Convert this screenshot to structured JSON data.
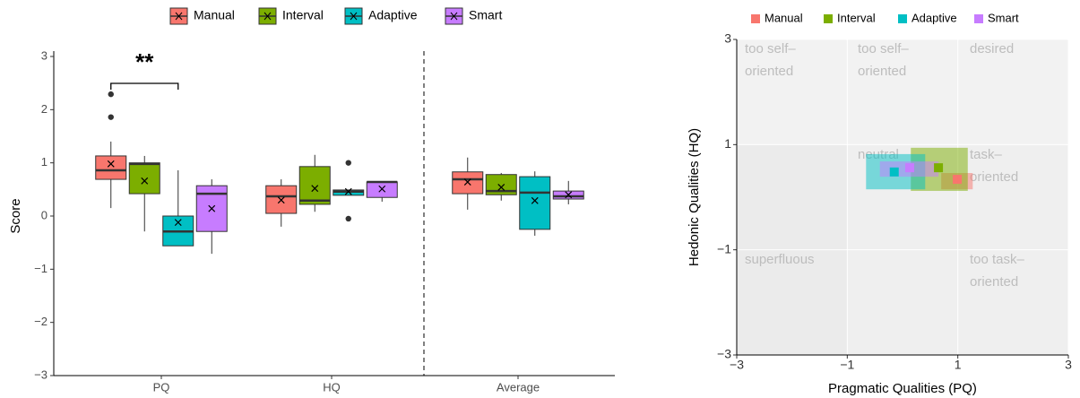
{
  "chart_data": [
    {
      "type": "box",
      "y_label": "Score",
      "categories": [
        "PQ",
        "HQ",
        "Average"
      ],
      "ylim": [
        -3,
        3
      ],
      "yticks": [
        {
          "value": -3,
          "label": "−3"
        },
        {
          "value": -2,
          "label": "−2"
        },
        {
          "value": -1,
          "label": "−1"
        },
        0,
        1,
        2,
        3
      ],
      "annotation": "**",
      "series": [
        {
          "name": "Manual",
          "color": "#F8766D",
          "boxes": [
            {
              "whisker_low": 0.15,
              "q1": 0.69,
              "median": 0.86,
              "q3": 1.13,
              "whisker_high": 1.4,
              "mean": 0.98,
              "outliers": [
                2.29,
                1.86
              ]
            },
            {
              "whisker_low": -0.2,
              "q1": 0.05,
              "median": 0.37,
              "q3": 0.57,
              "whisker_high": 0.69,
              "mean": 0.3,
              "outliers": []
            },
            {
              "whisker_low": 0.12,
              "q1": 0.42,
              "median": 0.69,
              "q3": 0.83,
              "whisker_high": 1.1,
              "mean": 0.64,
              "outliers": []
            }
          ]
        },
        {
          "name": "Interval",
          "color": "#7CAE00",
          "boxes": [
            {
              "whisker_low": -0.29,
              "q1": 0.42,
              "median": 0.98,
              "q3": 1.0,
              "whisker_high": 1.13,
              "mean": 0.66,
              "outliers": []
            },
            {
              "whisker_low": 0.08,
              "q1": 0.22,
              "median": 0.29,
              "q3": 0.93,
              "whisker_high": 1.15,
              "mean": 0.52,
              "outliers": []
            },
            {
              "whisker_low": 0.29,
              "q1": 0.4,
              "median": 0.47,
              "q3": 0.78,
              "whisker_high": 0.81,
              "mean": 0.54,
              "outliers": []
            }
          ]
        },
        {
          "name": "Adaptive",
          "color": "#00BFC4",
          "boxes": [
            {
              "whisker_low": -0.56,
              "q1": -0.56,
              "median": -0.29,
              "q3": 0.0,
              "whisker_high": 0.86,
              "mean": -0.12,
              "outliers": []
            },
            {
              "whisker_low": 0.39,
              "q1": 0.39,
              "median": 0.46,
              "q3": 0.49,
              "whisker_high": 0.49,
              "mean": 0.46,
              "outliers": [
                1.0,
                -0.05
              ]
            },
            {
              "whisker_low": -0.37,
              "q1": -0.25,
              "median": 0.44,
              "q3": 0.74,
              "whisker_high": 0.84,
              "mean": 0.29,
              "outliers": []
            }
          ]
        },
        {
          "name": "Smart",
          "color": "#C77CFF",
          "boxes": [
            {
              "whisker_low": -0.71,
              "q1": -0.29,
              "median": 0.42,
              "q3": 0.57,
              "whisker_high": 0.69,
              "mean": 0.14,
              "outliers": []
            },
            {
              "whisker_low": 0.27,
              "q1": 0.35,
              "median": 0.64,
              "q3": 0.64,
              "whisker_high": 0.64,
              "mean": 0.51,
              "outliers": []
            },
            {
              "whisker_low": 0.22,
              "q1": 0.32,
              "median": 0.37,
              "q3": 0.47,
              "whisker_high": 0.66,
              "mean": 0.4,
              "outliers": []
            }
          ]
        }
      ]
    },
    {
      "type": "scatter",
      "x_label": "Pragmatic Qualities (PQ)",
      "y_label": "Hedonic Qualities (HQ)",
      "xlim": [
        -3,
        3
      ],
      "ylim": [
        -3,
        3
      ],
      "xticks": [
        {
          "value": -3,
          "label": "−3"
        },
        {
          "value": -1,
          "label": "−1"
        },
        1,
        3
      ],
      "yticks": [
        {
          "value": -3,
          "label": "−3"
        },
        {
          "value": -1,
          "label": "−1"
        },
        1,
        3
      ],
      "regions": [
        [
          "too self–",
          "oriented"
        ],
        [
          "too self–",
          "oriented"
        ],
        [
          "desired"
        ],
        [
          "neutral"
        ],
        [
          "task–",
          "oriented"
        ],
        [
          "superfluous"
        ],
        [
          "too task–",
          "oriented"
        ]
      ],
      "series": [
        {
          "name": "Manual",
          "color": "#F8766D",
          "pq": 0.99,
          "hq": 0.34,
          "pq_ci": [
            0.7,
            1.27
          ],
          "hq_ci": [
            0.15,
            0.46
          ]
        },
        {
          "name": "Interval",
          "color": "#7CAE00",
          "pq": 0.65,
          "hq": 0.56,
          "pq_ci": [
            0.15,
            1.18
          ],
          "hq_ci": [
            0.12,
            0.94
          ]
        },
        {
          "name": "Adaptive",
          "color": "#00BFC4",
          "pq": -0.15,
          "hq": 0.48,
          "pq_ci": [
            -0.66,
            0.41
          ],
          "hq_ci": [
            0.15,
            0.82
          ]
        },
        {
          "name": "Smart",
          "color": "#C77CFF",
          "pq": 0.13,
          "hq": 0.56,
          "pq_ci": [
            -0.41,
            0.65
          ],
          "hq_ci": [
            0.39,
            0.68
          ]
        }
      ]
    }
  ]
}
